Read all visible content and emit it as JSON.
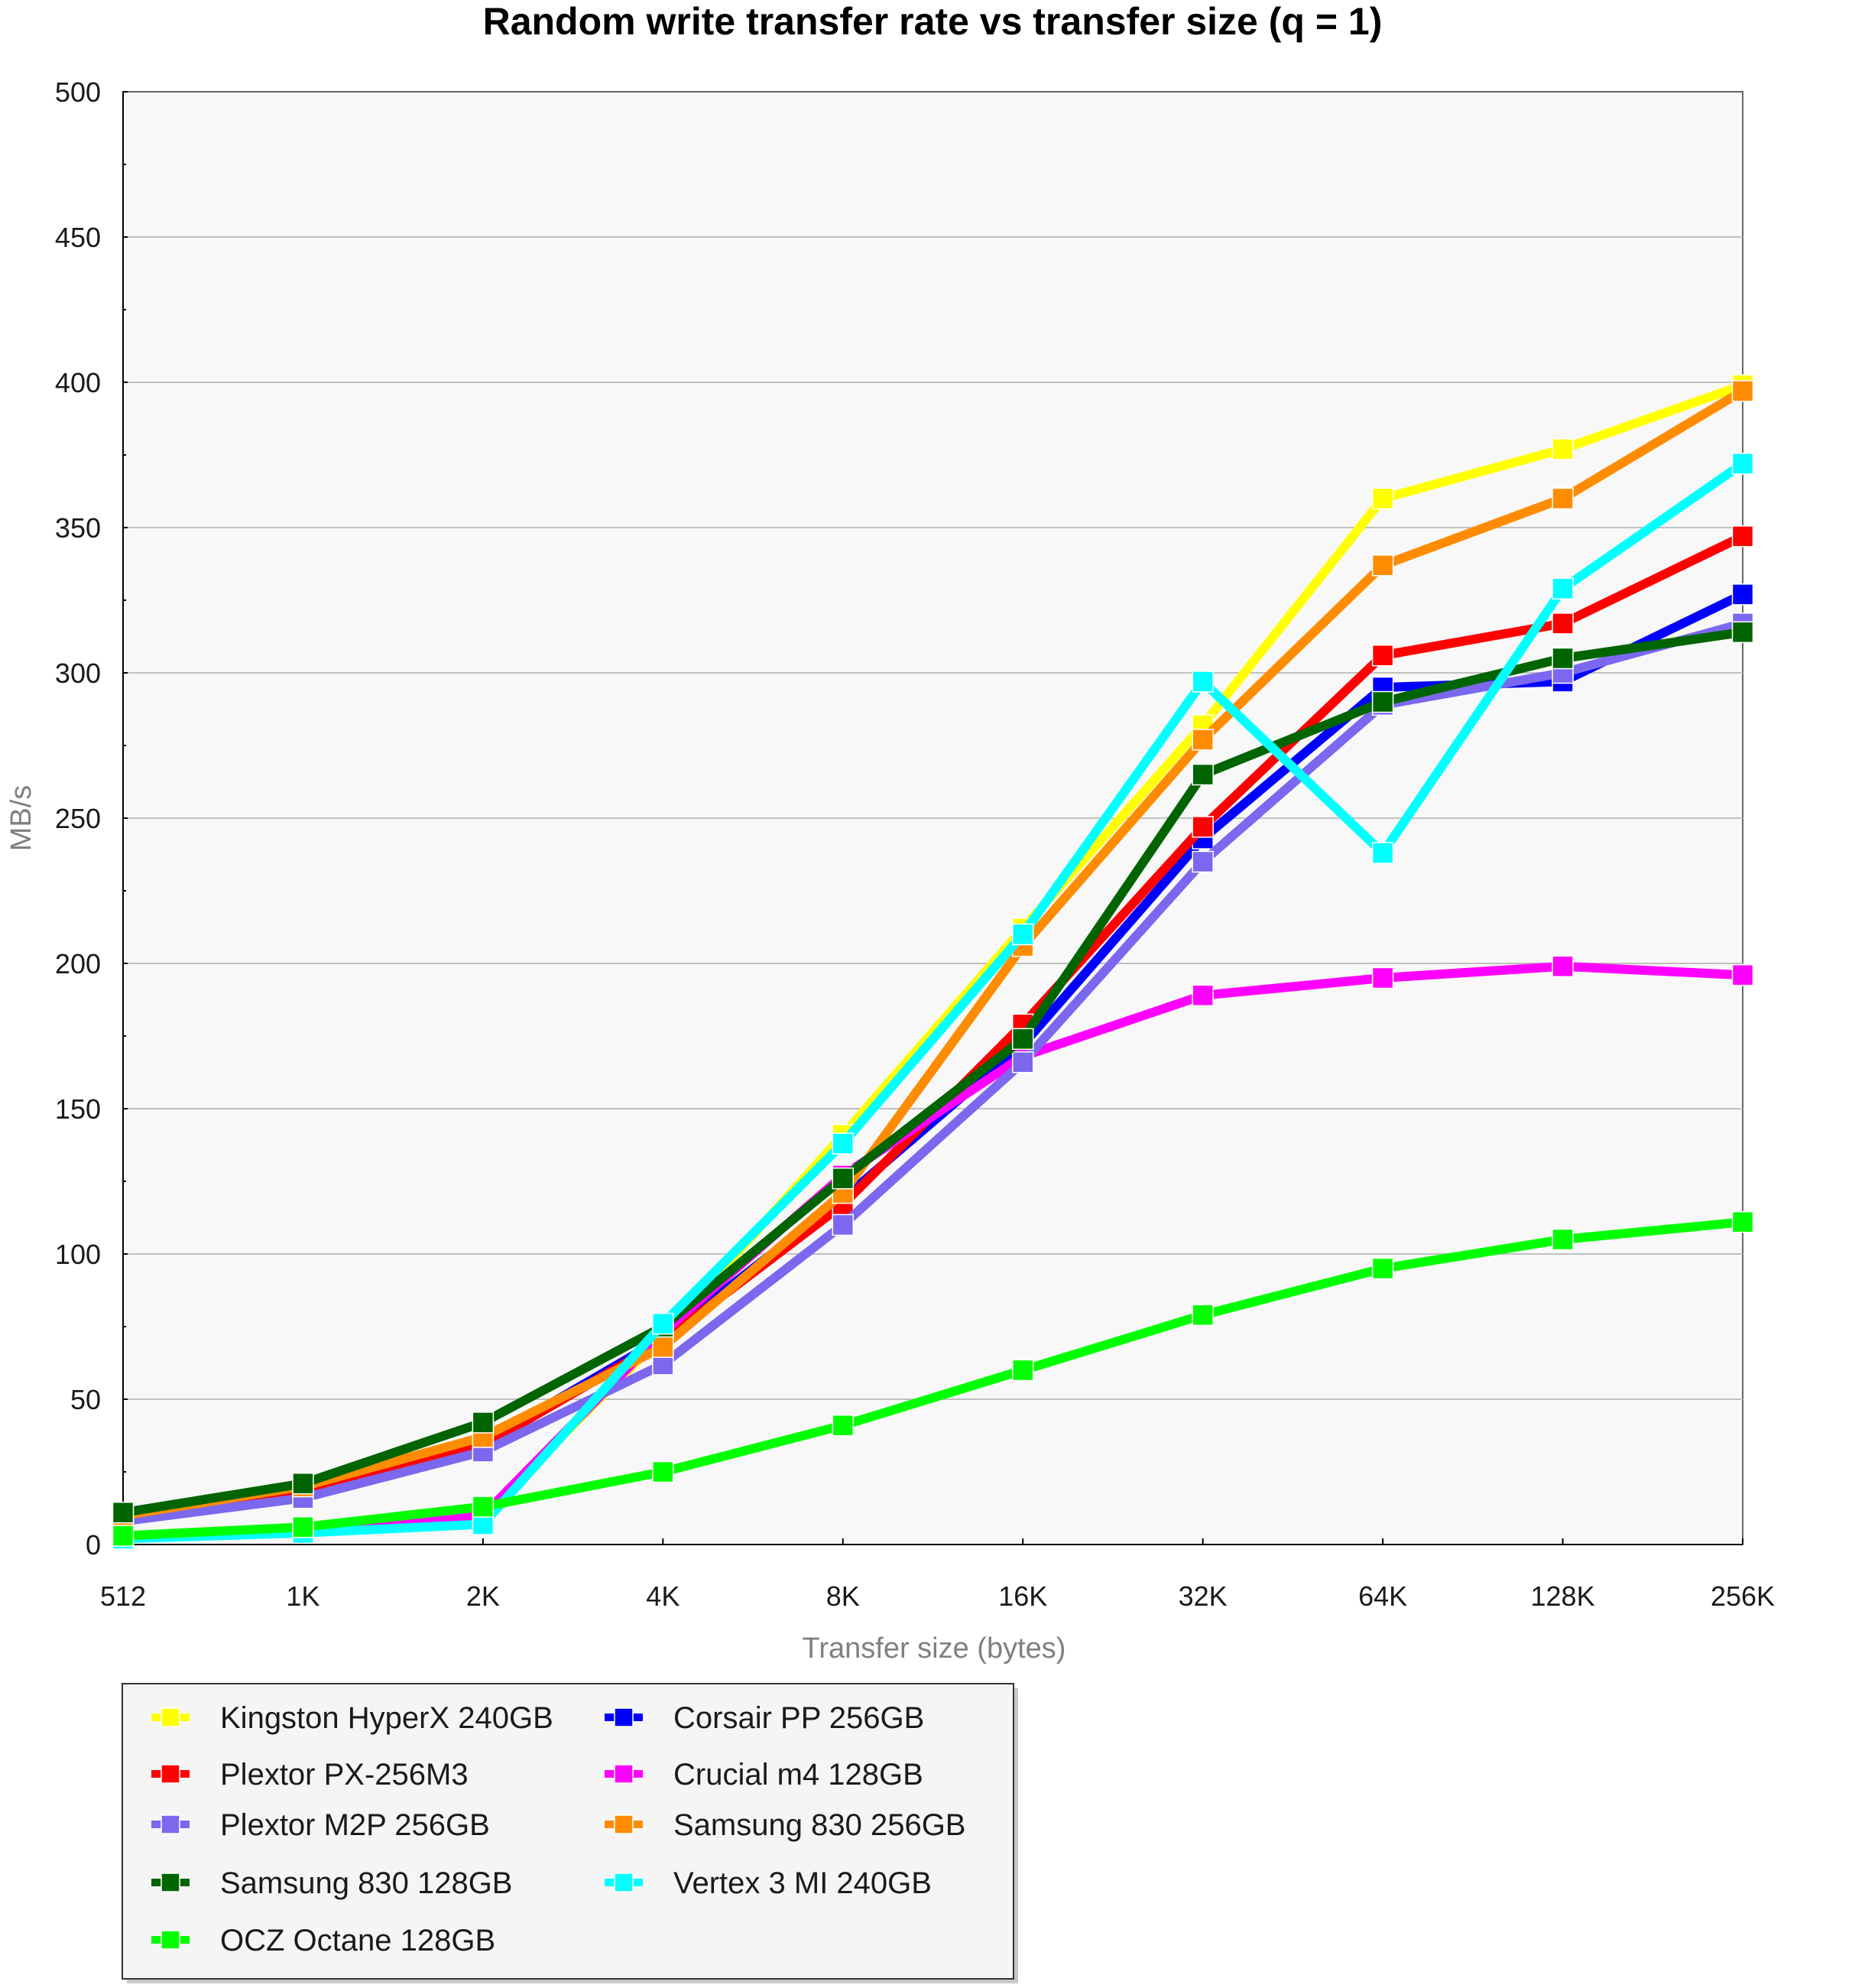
{
  "chart_data": {
    "type": "line",
    "title": "Random write transfer rate vs transfer size (q = 1)",
    "xlabel": "Transfer size (bytes)",
    "ylabel": "MB/s",
    "x": [
      "512",
      "1K",
      "2K",
      "4K",
      "8K",
      "16K",
      "32K",
      "64K",
      "128K",
      "256K"
    ],
    "xscale": "log2",
    "ylim": [
      0,
      500
    ],
    "yticks": [
      0,
      50,
      100,
      150,
      200,
      250,
      300,
      350,
      400,
      450,
      500
    ],
    "grid": true,
    "legend_position": "bottom-left",
    "marker": "square",
    "series": [
      {
        "name": "Kingston HyperX 240GB",
        "color": "#ffff00",
        "values": [
          3,
          5,
          10,
          72,
          141,
          212,
          282,
          360,
          377,
          399
        ]
      },
      {
        "name": "Corsair PP 256GB",
        "color": "#0000ff",
        "values": [
          9,
          19,
          35,
          71,
          119,
          172,
          243,
          295,
          297,
          327
        ]
      },
      {
        "name": "Plextor PX-256M3",
        "color": "#ff0000",
        "values": [
          9,
          19,
          34,
          70,
          117,
          179,
          247,
          306,
          317,
          347
        ]
      },
      {
        "name": "Crucial m4 128GB",
        "color": "#ff00ff",
        "values": [
          3,
          5,
          10,
          73,
          127,
          168,
          189,
          195,
          199,
          196
        ]
      },
      {
        "name": "Plextor M2P 256GB",
        "color": "#7b68ee",
        "values": [
          8,
          16,
          32,
          62,
          110,
          166,
          235,
          289,
          300,
          317
        ]
      },
      {
        "name": "Samsung 830 256GB",
        "color": "#ff8c00",
        "values": [
          10,
          20,
          37,
          68,
          121,
          206,
          277,
          337,
          360,
          397
        ]
      },
      {
        "name": "Samsung 830 128GB",
        "color": "#006400",
        "values": [
          11,
          21,
          42,
          75,
          126,
          174,
          265,
          290,
          305,
          314
        ]
      },
      {
        "name": "Vertex 3 MI 240GB",
        "color": "#00ffff",
        "values": [
          2,
          4,
          7,
          76,
          138,
          210,
          297,
          238,
          329,
          372
        ]
      },
      {
        "name": "OCZ Octane 128GB",
        "color": "#00ff00",
        "values": [
          3,
          6,
          13,
          25,
          41,
          60,
          79,
          95,
          105,
          111
        ]
      }
    ],
    "legend_order": [
      "Kingston HyperX 240GB",
      "Corsair PP 256GB",
      "Plextor PX-256M3",
      "Crucial m4 128GB",
      "Plextor M2P 256GB",
      "Samsung 830 256GB",
      "Samsung 830 128GB",
      "Vertex 3 MI 240GB",
      "OCZ Octane 128GB"
    ]
  },
  "colors": {
    "plot_background": "#f8f8f8",
    "legend_background": "#f5f5f5",
    "gridline": "#c0c0c0",
    "axis_title": "#808080"
  }
}
